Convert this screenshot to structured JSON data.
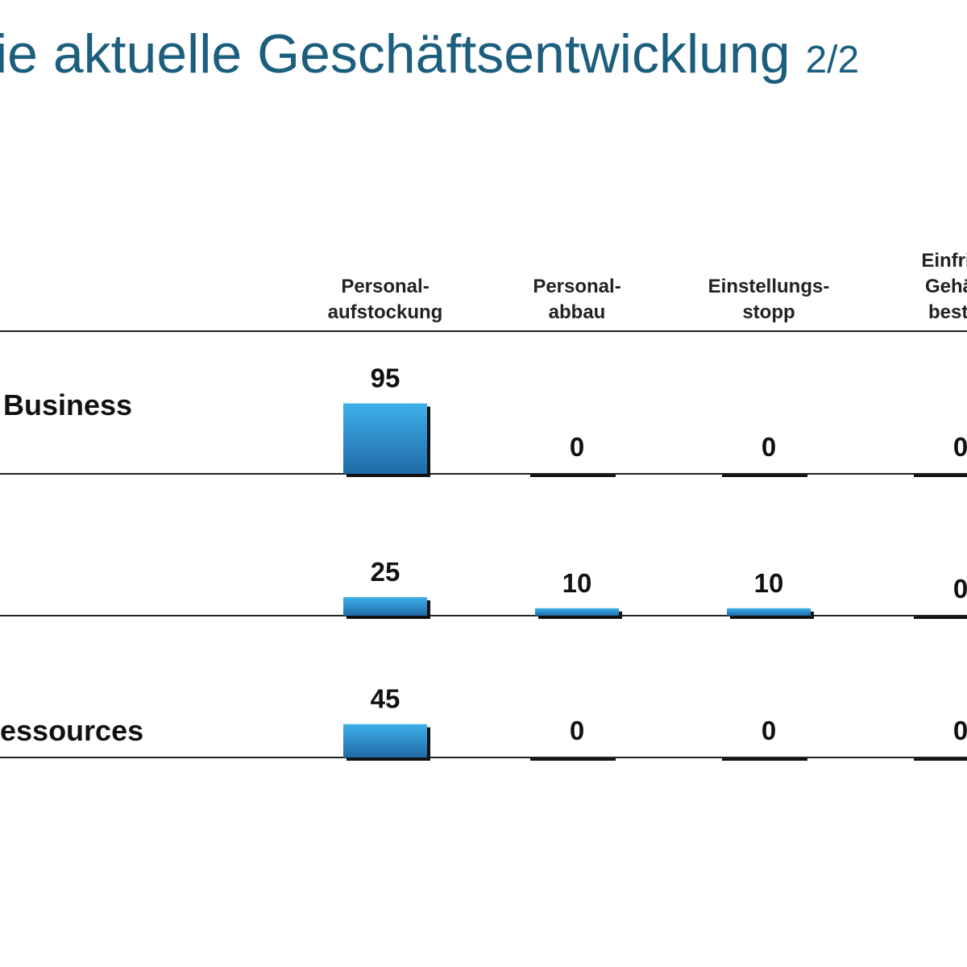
{
  "header": {
    "title": "ie aktuelle Geschäftsentwicklung",
    "page": "2/2"
  },
  "colors": {
    "title": "#1b5e7e",
    "bar_top": "#3fb0ea",
    "bar_bottom": "#1f6aa7",
    "bar_shadow": "#111111"
  },
  "chart_data": {
    "type": "bar",
    "title": "",
    "categories": [
      [
        "Personal-",
        "aufstockung"
      ],
      [
        "Personal-",
        "abbau"
      ],
      [
        "Einstellungs-",
        "stopp"
      ],
      [
        "Einfriere",
        "Gehälte",
        "best. N"
      ]
    ],
    "series": [
      {
        "name": "Business",
        "values": [
          95,
          0,
          0,
          0
        ]
      },
      {
        "name": "",
        "values": [
          25,
          10,
          10,
          0
        ]
      },
      {
        "name": "essources",
        "values": [
          45,
          0,
          0,
          0
        ]
      }
    ],
    "ylim": [
      0,
      100
    ],
    "legend": "none",
    "grid": false
  }
}
